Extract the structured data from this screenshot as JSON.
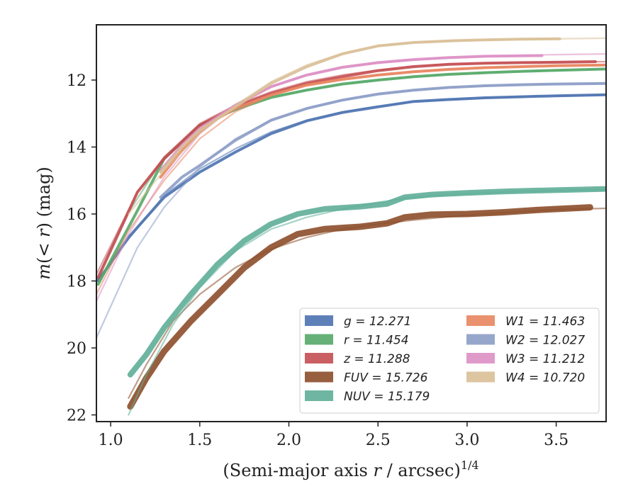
{
  "chart_data": {
    "type": "line",
    "xlabel": "(Semi-major axis r / arcsec)1/4",
    "ylabel": "m(< r) (mag)",
    "xlim": [
      0.92,
      3.78
    ],
    "ylim": [
      22.2,
      10.35
    ],
    "y_inverted": true,
    "x_ticks": [
      1.0,
      1.5,
      2.0,
      2.5,
      3.0,
      3.5
    ],
    "x_tick_labels": [
      "1.0",
      "1.5",
      "2.0",
      "2.5",
      "3.0",
      "3.5"
    ],
    "y_ticks": [
      12,
      14,
      16,
      18,
      20,
      22
    ],
    "y_tick_labels": [
      "12",
      "14",
      "16",
      "18",
      "20",
      "22"
    ],
    "grid": false,
    "legend_position": "lower-right",
    "series": [
      {
        "name": "g = 12.271",
        "color": "#4c72b0",
        "fit_x": [
          0.92,
          1.1,
          1.3,
          1.5,
          1.7,
          1.9,
          2.1,
          2.3,
          2.5,
          2.7,
          2.9,
          3.1,
          3.3,
          3.5,
          3.78
        ],
        "fit_y": [
          18.0,
          16.75,
          15.45,
          14.65,
          14.05,
          13.55,
          13.2,
          12.95,
          12.78,
          12.65,
          12.58,
          12.54,
          12.5,
          12.47,
          12.44
        ],
        "data_x": [
          0.93,
          1.1,
          1.3,
          1.5,
          1.7,
          1.9,
          2.1,
          2.3,
          2.5,
          2.7,
          2.9,
          3.1,
          3.3,
          3.5,
          3.78
        ],
        "data_y": [
          18.0,
          16.7,
          15.5,
          14.75,
          14.15,
          13.6,
          13.22,
          12.97,
          12.8,
          12.64,
          12.58,
          12.53,
          12.5,
          12.47,
          12.44
        ],
        "band_width": 4
      },
      {
        "name": "r = 11.454",
        "color": "#55a868",
        "fit_x": [
          0.92,
          1.1,
          1.3,
          1.5,
          1.7,
          1.9,
          2.1,
          2.3,
          2.5,
          2.7,
          2.9,
          3.1,
          3.3,
          3.5,
          3.78
        ],
        "fit_y": [
          17.95,
          15.95,
          14.3,
          13.35,
          12.85,
          12.5,
          12.3,
          12.12,
          12.0,
          11.9,
          11.83,
          11.78,
          11.74,
          11.71,
          11.67
        ],
        "data_x": [
          0.93,
          1.15,
          1.3,
          1.5,
          1.7,
          1.9,
          2.1,
          2.3,
          2.5,
          2.7,
          2.9,
          3.1,
          3.3,
          3.5,
          3.78
        ],
        "data_y": [
          18.1,
          15.9,
          14.35,
          13.35,
          12.88,
          12.52,
          12.3,
          12.12,
          12.0,
          11.9,
          11.83,
          11.78,
          11.74,
          11.71,
          11.67
        ],
        "band_width": 4
      },
      {
        "name": "z = 11.288",
        "color": "#c44e52",
        "fit_x": [
          0.92,
          1.15,
          1.3,
          1.5,
          1.7,
          1.9,
          2.1,
          2.3,
          2.5,
          2.7,
          2.9,
          3.1,
          3.3,
          3.5,
          3.78
        ],
        "fit_y": [
          17.8,
          15.35,
          14.3,
          13.3,
          12.75,
          12.35,
          12.05,
          11.85,
          11.7,
          11.58,
          11.52,
          11.49,
          11.48,
          11.47,
          11.45
        ],
        "data_x": [
          0.93,
          1.15,
          1.3,
          1.5,
          1.7,
          1.9,
          2.1,
          2.3,
          2.5,
          2.7,
          2.9,
          3.1,
          3.3,
          3.5,
          3.72
        ],
        "data_y": [
          17.9,
          15.35,
          14.35,
          13.35,
          12.8,
          12.4,
          12.1,
          11.9,
          11.72,
          11.6,
          11.53,
          11.5,
          11.48,
          11.47,
          11.45
        ],
        "band_width": 4
      },
      {
        "name": "FUV = 15.726",
        "color": "#8c4e2a",
        "fit_x": [
          1.1,
          1.2,
          1.35,
          1.5,
          1.7,
          1.9,
          2.1,
          2.3,
          2.5,
          2.7,
          2.9,
          3.1,
          3.3,
          3.5,
          3.78
        ],
        "fit_y": [
          21.5,
          20.5,
          19.2,
          18.4,
          17.6,
          17.05,
          16.7,
          16.45,
          16.3,
          16.18,
          16.08,
          16.0,
          15.93,
          15.87,
          15.83
        ],
        "data_x": [
          1.11,
          1.2,
          1.3,
          1.45,
          1.6,
          1.75,
          1.9,
          2.05,
          2.2,
          2.4,
          2.55,
          2.65,
          2.8,
          3.0,
          3.2,
          3.4,
          3.69
        ],
        "data_y": [
          21.75,
          20.9,
          20.1,
          19.2,
          18.4,
          17.6,
          17.0,
          16.6,
          16.45,
          16.38,
          16.28,
          16.1,
          16.02,
          16.0,
          15.95,
          15.88,
          15.8
        ],
        "band_width": 9
      },
      {
        "name": "NUV = 15.179",
        "color": "#5fae98",
        "fit_x": [
          1.1,
          1.2,
          1.35,
          1.5,
          1.7,
          1.9,
          2.1,
          2.3,
          2.5,
          2.7,
          2.9,
          3.1,
          3.3,
          3.5,
          3.78
        ],
        "fit_y": [
          22.0,
          20.8,
          19.3,
          18.2,
          17.1,
          16.45,
          16.1,
          15.85,
          15.65,
          15.5,
          15.42,
          15.37,
          15.33,
          15.3,
          15.27
        ],
        "data_x": [
          1.11,
          1.2,
          1.3,
          1.45,
          1.6,
          1.75,
          1.9,
          2.05,
          2.2,
          2.4,
          2.55,
          2.65,
          2.8,
          3.0,
          3.2,
          3.4,
          3.78
        ],
        "data_y": [
          20.8,
          20.2,
          19.4,
          18.4,
          17.5,
          16.8,
          16.3,
          16.0,
          15.85,
          15.78,
          15.7,
          15.5,
          15.42,
          15.37,
          15.33,
          15.3,
          15.25
        ],
        "band_width": 8
      },
      {
        "name": "W1 = 11.463",
        "color": "#e8855f",
        "fit_x": [
          0.92,
          1.1,
          1.3,
          1.5,
          1.7,
          1.9,
          2.1,
          2.3,
          2.5,
          2.7,
          2.9,
          3.1,
          3.3,
          3.5,
          3.78
        ],
        "fit_y": [
          18.4,
          16.5,
          15.0,
          13.75,
          12.95,
          12.45,
          12.15,
          11.98,
          11.85,
          11.75,
          11.68,
          11.63,
          11.6,
          11.57,
          11.55
        ],
        "data_x": [
          1.28,
          1.4,
          1.5,
          1.6,
          1.7,
          1.9,
          2.1,
          2.3,
          2.5,
          2.7,
          2.9,
          3.1,
          3.3,
          3.5,
          3.78
        ],
        "data_y": [
          14.9,
          14.1,
          13.55,
          13.15,
          12.85,
          12.45,
          12.15,
          11.98,
          11.85,
          11.75,
          11.68,
          11.63,
          11.6,
          11.57,
          11.55
        ],
        "band_width": 4
      },
      {
        "name": "W2 = 12.027",
        "color": "#8c9dc6",
        "fit_x": [
          0.92,
          1.15,
          1.3,
          1.5,
          1.7,
          1.9,
          2.1,
          2.3,
          2.5,
          2.7,
          2.9,
          3.1,
          3.3,
          3.5,
          3.78
        ],
        "fit_y": [
          19.7,
          17.0,
          15.8,
          14.6,
          13.75,
          13.2,
          12.85,
          12.6,
          12.42,
          12.3,
          12.22,
          12.17,
          12.14,
          12.12,
          12.1
        ],
        "data_x": [
          1.28,
          1.4,
          1.5,
          1.7,
          1.9,
          2.1,
          2.3,
          2.5,
          2.7,
          2.9,
          3.1,
          3.3,
          3.5,
          3.78
        ],
        "data_y": [
          15.5,
          14.9,
          14.55,
          13.8,
          13.2,
          12.85,
          12.6,
          12.42,
          12.3,
          12.22,
          12.17,
          12.14,
          12.12,
          12.1
        ],
        "band_width": 4
      },
      {
        "name": "W3 = 11.212",
        "color": "#dd8fc4",
        "fit_x": [
          0.92,
          1.1,
          1.3,
          1.5,
          1.7,
          1.9,
          2.1,
          2.3,
          2.5,
          2.7,
          2.9,
          3.1,
          3.3,
          3.5,
          3.78
        ],
        "fit_y": [
          18.6,
          16.6,
          14.9,
          13.6,
          12.75,
          12.2,
          11.85,
          11.62,
          11.48,
          11.39,
          11.33,
          11.29,
          11.26,
          11.24,
          11.22
        ],
        "data_x": [
          1.28,
          1.4,
          1.5,
          1.7,
          1.9,
          2.1,
          2.3,
          2.5,
          2.7,
          2.9,
          3.1,
          3.42
        ],
        "data_y": [
          14.7,
          13.95,
          13.45,
          12.75,
          12.2,
          11.85,
          11.62,
          11.48,
          11.39,
          11.33,
          11.29,
          11.27
        ],
        "band_width": 4
      },
      {
        "name": "W4 = 10.720",
        "color": "#d9bf96",
        "fit_x": [
          1.1,
          1.3,
          1.5,
          1.7,
          1.9,
          2.1,
          2.3,
          2.5,
          2.7,
          2.9,
          3.1,
          3.3,
          3.5,
          3.78
        ],
        "fit_y": [
          16.0,
          14.7,
          13.6,
          12.75,
          12.05,
          11.55,
          11.2,
          10.98,
          10.88,
          10.83,
          10.8,
          10.78,
          10.77,
          10.75
        ],
        "data_x": [
          1.28,
          1.4,
          1.5,
          1.7,
          1.9,
          2.1,
          2.3,
          2.5,
          2.7,
          2.9,
          3.1,
          3.3,
          3.52
        ],
        "data_y": [
          14.75,
          14.0,
          13.5,
          12.8,
          12.1,
          11.6,
          11.22,
          10.98,
          10.88,
          10.83,
          10.8,
          10.78,
          10.77
        ],
        "band_width": 4
      }
    ]
  }
}
